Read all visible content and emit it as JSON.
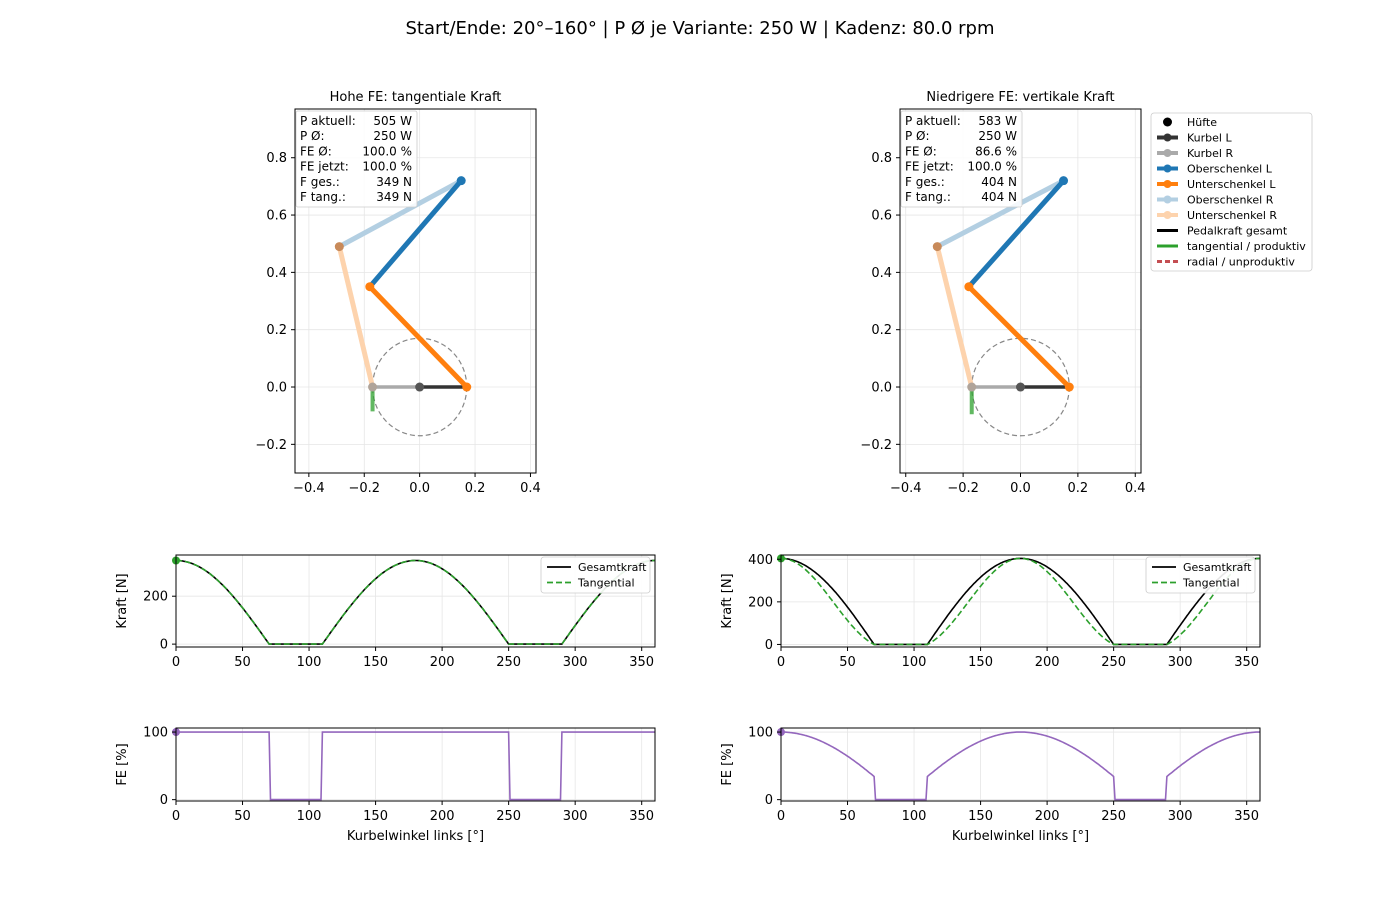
{
  "suptitle": "Start/Ende: 20°–160° | P Ø je Variante: 250 W | Kadenz: 80.0 rpm",
  "legend": {
    "items": [
      {
        "label": "Hüfte",
        "color": "#000000",
        "style": "marker"
      },
      {
        "label": "Kurbel L",
        "color": "#333333",
        "style": "line-marker"
      },
      {
        "label": "Kurbel R",
        "color": "#aaaaaa",
        "style": "line-marker"
      },
      {
        "label": "Oberschenkel L",
        "color": "#1f77b4",
        "style": "line-marker"
      },
      {
        "label": "Unterschenkel L",
        "color": "#ff7f0e",
        "style": "line-marker"
      },
      {
        "label": "Oberschenkel R",
        "color": "#b3cfe2",
        "style": "line-marker"
      },
      {
        "label": "Unterschenkel R",
        "color": "#fdd3ad",
        "style": "line-marker"
      },
      {
        "label": "Pedalkraft gesamt",
        "color": "#000000",
        "style": "line"
      },
      {
        "label": "tangential / produktiv",
        "color": "#2ca02c",
        "style": "line"
      },
      {
        "label": "radial / unproduktiv",
        "color": "#c44e52",
        "style": "dashed"
      }
    ]
  },
  "chart_data": [
    {
      "type": "scatter",
      "title": "Hohe FE: tangentiale Kraft",
      "xlim": [
        -0.45,
        0.42
      ],
      "ylim": [
        -0.3,
        0.97
      ],
      "xticks": [
        -0.4,
        -0.2,
        0.0,
        0.2,
        0.4
      ],
      "yticks": [
        -0.2,
        0.0,
        0.2,
        0.4,
        0.6,
        0.8
      ],
      "xtick_labels": [
        "−0.4",
        "−0.2",
        "0.0",
        "0.2",
        "0.4"
      ],
      "ytick_labels": [
        "−0.2",
        "0.0",
        "0.2",
        "0.4",
        "0.6",
        "0.8"
      ],
      "grid": true,
      "points": {
        "hip": [
          0.15,
          0.72
        ],
        "bb": [
          0.0,
          0.0
        ],
        "pedal_L": [
          0.17,
          0.0
        ],
        "pedal_R": [
          -0.17,
          0.0
        ],
        "knee_L": [
          -0.18,
          0.35
        ],
        "knee_R": [
          -0.29,
          0.49
        ]
      },
      "crank_radius": 0.17,
      "force_arrow": {
        "x": -0.17,
        "y0": 0.0,
        "y1": -0.085
      },
      "info": [
        {
          "label": "P aktuell:",
          "value": "505 W"
        },
        {
          "label": "P Ø:",
          "value": "250 W"
        },
        {
          "label": "FE Ø:",
          "value": "100.0 %"
        },
        {
          "label": "FE jetzt:",
          "value": "100.0 %"
        },
        {
          "label": "F ges.:",
          "value": "349 N"
        },
        {
          "label": "F tang.:",
          "value": "349 N"
        }
      ]
    },
    {
      "type": "scatter",
      "title": "Niedrigere FE: vertikale Kraft",
      "xlim": [
        -0.42,
        0.42
      ],
      "ylim": [
        -0.3,
        0.97
      ],
      "xticks": [
        -0.4,
        -0.2,
        0.0,
        0.2,
        0.4
      ],
      "yticks": [
        -0.2,
        0.0,
        0.2,
        0.4,
        0.6,
        0.8
      ],
      "xtick_labels": [
        "−0.4",
        "−0.2",
        "0.0",
        "0.2",
        "0.4"
      ],
      "ytick_labels": [
        "−0.2",
        "0.0",
        "0.2",
        "0.4",
        "0.6",
        "0.8"
      ],
      "grid": true,
      "points": {
        "hip": [
          0.15,
          0.72
        ],
        "bb": [
          0.0,
          0.0
        ],
        "pedal_L": [
          0.17,
          0.0
        ],
        "pedal_R": [
          -0.17,
          0.0
        ],
        "knee_L": [
          -0.18,
          0.35
        ],
        "knee_R": [
          -0.29,
          0.49
        ]
      },
      "crank_radius": 0.17,
      "force_arrow": {
        "x": -0.17,
        "y0": 0.0,
        "y1": -0.095
      },
      "info": [
        {
          "label": "P aktuell:",
          "value": "583 W"
        },
        {
          "label": "P Ø:",
          "value": "250 W"
        },
        {
          "label": "FE Ø:",
          "value": "86.6 %"
        },
        {
          "label": "FE jetzt:",
          "value": "100.0 %"
        },
        {
          "label": "F ges.:",
          "value": "404 N"
        },
        {
          "label": "F tang.:",
          "value": "404 N"
        }
      ]
    },
    {
      "type": "line",
      "xlabel": "",
      "ylabel": "Kraft [N]",
      "xlim": [
        0,
        360
      ],
      "ylim": [
        -12,
        372
      ],
      "xticks": [
        0,
        50,
        100,
        150,
        200,
        250,
        300,
        350
      ],
      "yticks": [
        0,
        200
      ],
      "grid": true,
      "legend_position": "upper right",
      "series": [
        {
          "name": "Gesamtkraft",
          "color": "#000000",
          "dash": "",
          "kind": "total",
          "peak": 349
        },
        {
          "name": "Tangential",
          "color": "#2ca02c",
          "dash": "6,3",
          "kind": "tang",
          "peak": 349
        }
      ]
    },
    {
      "type": "line",
      "xlabel": "",
      "ylabel": "Kraft [N]",
      "xlim": [
        0,
        360
      ],
      "ylim": [
        -12,
        420
      ],
      "xticks": [
        0,
        50,
        100,
        150,
        200,
        250,
        300,
        350
      ],
      "yticks": [
        0,
        200,
        400
      ],
      "grid": true,
      "legend_position": "upper right",
      "series": [
        {
          "name": "Gesamtkraft",
          "color": "#000000",
          "dash": "",
          "kind": "total",
          "peak": 404
        },
        {
          "name": "Tangential",
          "color": "#2ca02c",
          "dash": "6,3",
          "kind": "tangcos",
          "peak": 404
        }
      ]
    },
    {
      "type": "line",
      "xlabel": "Kurbelwinkel links [°]",
      "ylabel": "FE [%]",
      "xlim": [
        0,
        360
      ],
      "ylim": [
        -2,
        106
      ],
      "xticks": [
        0,
        50,
        100,
        150,
        200,
        250,
        300,
        350
      ],
      "yticks": [
        0,
        100
      ],
      "grid": true,
      "series": [
        {
          "name": "",
          "color": "#9467bd",
          "dash": "",
          "kind": "fe_step",
          "peak": 100
        }
      ]
    },
    {
      "type": "line",
      "xlabel": "Kurbelwinkel links [°]",
      "ylabel": "FE [%]",
      "xlim": [
        0,
        360
      ],
      "ylim": [
        -2,
        106
      ],
      "xticks": [
        0,
        50,
        100,
        150,
        200,
        250,
        300,
        350
      ],
      "yticks": [
        0,
        100
      ],
      "grid": true,
      "series": [
        {
          "name": "",
          "color": "#9467bd",
          "dash": "",
          "kind": "fe_cos",
          "peak": 100
        }
      ]
    }
  ]
}
